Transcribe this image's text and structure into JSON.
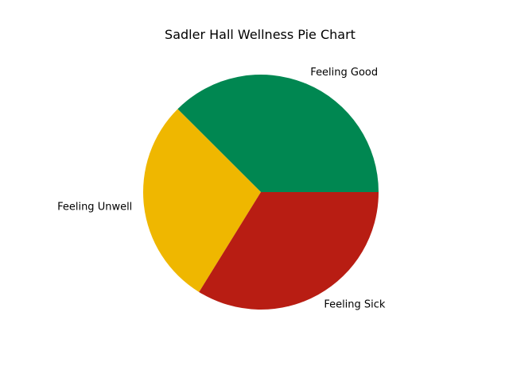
{
  "chart_data": {
    "type": "pie",
    "title": "Sadler Hall Wellness Pie Chart",
    "start_angle_deg": 0,
    "direction": "counterclockwise",
    "slices": [
      {
        "label": "Feeling Good",
        "value": 37.5,
        "color": "#008751"
      },
      {
        "label": "Feeling Unwell",
        "value": 28.7,
        "color": "#EFB700"
      },
      {
        "label": "Feeling Sick",
        "value": 33.8,
        "color": "#B81D13"
      }
    ]
  }
}
